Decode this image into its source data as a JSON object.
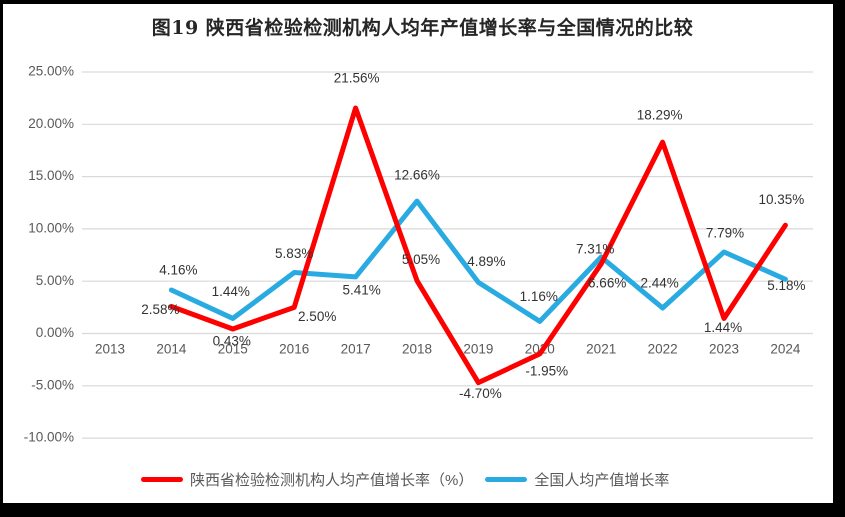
{
  "page": {
    "title": "图19 陕西省检验检测机构人均年产值增长率与全国情况的比较"
  },
  "theme": {
    "frame": "#000000",
    "background": "#ffffff",
    "grid": "#d9d9d9",
    "tick_text": "#595959",
    "label_text": "#333333",
    "shaanxi_red": "#fe0000",
    "national_blue": "#29abe2"
  },
  "chart_data": {
    "type": "line",
    "title": "图19 陕西省检验检测机构人均年产值增长率与全国情况的比较",
    "xlabel": "",
    "ylabel": "",
    "ylim": [
      -10,
      25
    ],
    "grid": true,
    "legend_position": "bottom",
    "categories": [
      "2013",
      "2014",
      "2015",
      "2016",
      "2017",
      "2018",
      "2019",
      "2020",
      "2021",
      "2022",
      "2023",
      "2024"
    ],
    "y_ticks": [
      "25.00%",
      "20.00%",
      "15.00%",
      "10.00%",
      "5.00%",
      "0.00%",
      "-5.00%",
      "-10.00%"
    ],
    "series": [
      {
        "name": "陕西省检验检测机构人均产值增长率（%）",
        "data_name": "series-shaanxi",
        "color": "#fe0000",
        "x_start": "2014",
        "values": [
          2.58,
          0.43,
          2.5,
          21.56,
          5.05,
          -4.7,
          -1.95,
          6.66,
          18.29,
          1.44,
          10.35
        ],
        "labels": [
          "2.58%",
          "0.43%",
          "2.50%",
          "21.56%",
          "5.05%",
          "-4.70%",
          "-1.95%",
          "6.66%",
          "18.29%",
          "1.44%",
          "10.35%"
        ],
        "label_offsets": [
          [
            -11,
            4
          ],
          [
            -1,
            13
          ],
          [
            23,
            10
          ],
          [
            1,
            -29
          ],
          [
            4,
            -20
          ],
          [
            2,
            12
          ],
          [
            7,
            18
          ],
          [
            6,
            20
          ],
          [
            -3,
            -26
          ],
          [
            -1,
            10
          ],
          [
            -4,
            -25
          ]
        ]
      },
      {
        "name": "全国人均产值增长率",
        "data_name": "series-national",
        "color": "#29abe2",
        "x_start": "2014",
        "values": [
          4.16,
          1.44,
          5.83,
          5.41,
          12.66,
          4.89,
          1.16,
          7.31,
          2.44,
          7.79,
          5.18
        ],
        "labels": [
          "4.16%",
          "1.44%",
          "5.83%",
          "5.41%",
          "12.66%",
          "4.89%",
          "1.16%",
          "7.31%",
          "2.44%",
          "7.79%",
          "5.18%"
        ],
        "label_offsets": [
          [
            7,
            -19
          ],
          [
            -2,
            -26
          ],
          [
            0,
            -18
          ],
          [
            6,
            14
          ],
          [
            0,
            -25
          ],
          [
            8,
            -20
          ],
          [
            -1,
            -24
          ],
          [
            -6,
            -7
          ],
          [
            -3,
            -24
          ],
          [
            1,
            -18
          ],
          [
            1,
            7
          ]
        ]
      }
    ]
  }
}
